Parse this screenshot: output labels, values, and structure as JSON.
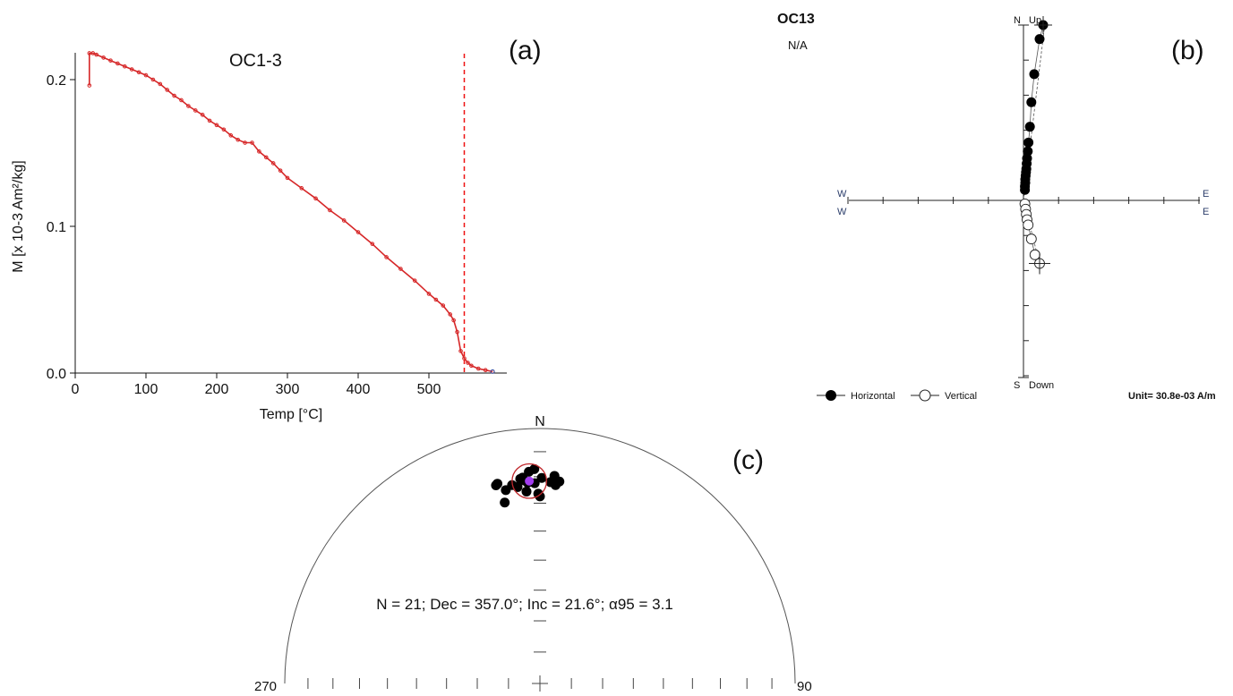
{
  "chart_data": [
    {
      "panel_label": "(a)",
      "type": "line",
      "title": "OC1-3",
      "xlabel": "Temp [°C]",
      "ylabel": "M [x 10-3 Am²/kg]",
      "xlim": [
        0,
        600
      ],
      "ylim": [
        0,
        0.22
      ],
      "x_ticks": [
        "0",
        "100",
        "200",
        "300",
        "400",
        "500"
      ],
      "y_ticks": [
        "0.0",
        "0.1",
        "0.2"
      ],
      "grid": false,
      "series_color": "#d62728",
      "curie_line_x": 550,
      "x": [
        20,
        20,
        25,
        30,
        40,
        50,
        60,
        70,
        80,
        90,
        100,
        110,
        120,
        130,
        140,
        150,
        160,
        170,
        180,
        190,
        200,
        210,
        220,
        230,
        240,
        250,
        260,
        270,
        280,
        290,
        300,
        320,
        340,
        360,
        380,
        400,
        420,
        440,
        460,
        480,
        500,
        510,
        520,
        530,
        535,
        540,
        545,
        550,
        555,
        560,
        570,
        580,
        590
      ],
      "y": [
        0.196,
        0.218,
        0.218,
        0.217,
        0.215,
        0.213,
        0.211,
        0.209,
        0.207,
        0.205,
        0.203,
        0.2,
        0.197,
        0.193,
        0.189,
        0.186,
        0.182,
        0.179,
        0.176,
        0.172,
        0.169,
        0.166,
        0.162,
        0.159,
        0.157,
        0.157,
        0.151,
        0.147,
        0.143,
        0.138,
        0.133,
        0.126,
        0.119,
        0.111,
        0.104,
        0.096,
        0.088,
        0.079,
        0.071,
        0.063,
        0.054,
        0.05,
        0.046,
        0.04,
        0.036,
        0.028,
        0.015,
        0.01,
        0.007,
        0.005,
        0.003,
        0.002,
        0.001
      ]
    },
    {
      "panel_label": "(b)",
      "type": "scatter",
      "title": "OC13",
      "subtitle": "N/A",
      "axis_labels": {
        "north": "N",
        "up": "Up",
        "south": "S",
        "down": "Down",
        "west_top": "W",
        "west_bottom": "W",
        "east_top": "E",
        "east_bottom": "E"
      },
      "unit_text": "Unit=  30.8e-03 A/m",
      "legend": [
        {
          "name": "Horizontal",
          "marker": "filled"
        },
        {
          "name": "Vertical",
          "marker": "open"
        }
      ],
      "horizontal_points": [
        [
          0.55,
          1.0
        ],
        [
          0.45,
          0.92
        ],
        [
          0.3,
          0.72
        ],
        [
          0.22,
          0.56
        ],
        [
          0.18,
          0.42
        ],
        [
          0.14,
          0.33
        ],
        [
          0.12,
          0.28
        ],
        [
          0.1,
          0.24
        ],
        [
          0.09,
          0.21
        ],
        [
          0.08,
          0.18
        ],
        [
          0.07,
          0.16
        ],
        [
          0.06,
          0.14
        ],
        [
          0.05,
          0.12
        ],
        [
          0.05,
          0.1
        ],
        [
          0.04,
          0.08
        ],
        [
          0.04,
          0.06
        ]
      ],
      "vertical_points": [
        [
          0.04,
          -0.02
        ],
        [
          0.06,
          -0.05
        ],
        [
          0.08,
          -0.08
        ],
        [
          0.1,
          -0.11
        ],
        [
          0.13,
          -0.14
        ],
        [
          0.22,
          -0.22
        ],
        [
          0.32,
          -0.31
        ],
        [
          0.45,
          -0.36
        ]
      ]
    },
    {
      "panel_label": "(c)",
      "type": "scatter",
      "projection": "equal-area stereonet (upper half)",
      "north_label": "N",
      "east_label": "90",
      "west_label": "270",
      "stats_text": "N = 21; Dec = 357.0°; Inc = 21.6°; α95 = 3.1",
      "mean_dec": 357.0,
      "mean_inc": 21.6,
      "a95": 3.1,
      "mean_color": "#a23cf0",
      "circle_color": "#c0282c",
      "points": [
        [
          355.2,
          20.1
        ],
        [
          358.5,
          17.0
        ],
        [
          352.0,
          22.5
        ],
        [
          348.0,
          21.0
        ],
        [
          347.5,
          21.5
        ],
        [
          350.0,
          24.0
        ],
        [
          349.0,
          28.5
        ],
        [
          353.5,
          23.5
        ],
        [
          355.5,
          21.2
        ],
        [
          356.5,
          22.2
        ],
        [
          358.5,
          22.5
        ],
        [
          0.5,
          20.5
        ],
        [
          3.0,
          22.0
        ],
        [
          4.5,
          23.0
        ],
        [
          5.5,
          21.5
        ],
        [
          4.0,
          19.5
        ],
        [
          359.5,
          26.5
        ],
        [
          357.0,
          18.0
        ],
        [
          356.0,
          25.5
        ],
        [
          354.5,
          20.5
        ],
        [
          360.0,
          27.5
        ]
      ]
    }
  ]
}
